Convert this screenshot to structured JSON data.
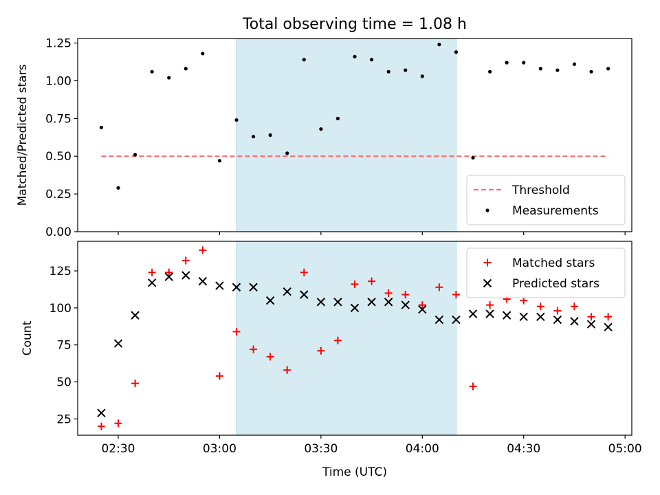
{
  "figure": {
    "title": "Total observing time = 1.08 h",
    "xlabel": "Time (UTC)"
  },
  "colors": {
    "highlight": "#add8e6",
    "threshold": "#ff6666",
    "measurements": "#000000",
    "matched": "#ff0000",
    "predicted": "#000000"
  },
  "chart_data": [
    {
      "type": "scatter",
      "ylabel": "Matched/Predicted stars",
      "xlim": [
        "02:18",
        "05:02"
      ],
      "ylim": [
        0,
        1.28
      ],
      "x_ticks": [
        "02:30",
        "03:00",
        "03:30",
        "04:00",
        "04:30",
        "05:00"
      ],
      "y_ticks": [
        "0.00",
        "0.25",
        "0.50",
        "0.75",
        "1.00",
        "1.25"
      ],
      "shaded_span": [
        "03:05",
        "04:10"
      ],
      "legend_position": "lower-right",
      "threshold": {
        "name": "Threshold",
        "value": 0.5,
        "x_range": [
          "02:25",
          "04:55"
        ]
      },
      "series": [
        {
          "name": "Measurements",
          "x": [
            "02:25",
            "02:30",
            "02:35",
            "02:40",
            "02:45",
            "02:50",
            "02:55",
            "03:00",
            "03:05",
            "03:10",
            "03:15",
            "03:20",
            "03:25",
            "03:30",
            "03:35",
            "03:40",
            "03:45",
            "03:50",
            "03:55",
            "04:00",
            "04:05",
            "04:10",
            "04:15",
            "04:20",
            "04:25",
            "04:30",
            "04:35",
            "04:40",
            "04:45",
            "04:50",
            "04:55"
          ],
          "values": [
            0.69,
            0.29,
            0.51,
            1.06,
            1.02,
            1.08,
            1.18,
            0.47,
            0.74,
            0.63,
            0.64,
            0.52,
            1.14,
            0.68,
            0.75,
            1.16,
            1.14,
            1.06,
            1.07,
            1.03,
            1.24,
            1.19,
            0.49,
            1.06,
            1.12,
            1.12,
            1.08,
            1.07,
            1.11,
            1.06,
            1.08
          ]
        }
      ]
    },
    {
      "type": "scatter",
      "ylabel": "Count",
      "xlim": [
        "02:18",
        "05:02"
      ],
      "ylim": [
        14,
        145
      ],
      "x_ticks": [
        "02:30",
        "03:00",
        "03:30",
        "04:00",
        "04:30",
        "05:00"
      ],
      "y_ticks": [
        "25",
        "50",
        "75",
        "100",
        "125"
      ],
      "shaded_span": [
        "03:05",
        "04:10"
      ],
      "legend_position": "upper-right",
      "series": [
        {
          "name": "Matched stars",
          "marker": "plus",
          "x": [
            "02:25",
            "02:30",
            "02:35",
            "02:40",
            "02:45",
            "02:50",
            "02:55",
            "03:00",
            "03:05",
            "03:10",
            "03:15",
            "03:20",
            "03:25",
            "03:30",
            "03:35",
            "03:40",
            "03:45",
            "03:50",
            "03:55",
            "04:00",
            "04:05",
            "04:10",
            "04:15",
            "04:20",
            "04:25",
            "04:30",
            "04:35",
            "04:40",
            "04:45",
            "04:50",
            "04:55"
          ],
          "values": [
            20,
            22,
            49,
            124,
            124,
            132,
            139,
            54,
            84,
            72,
            67,
            58,
            124,
            71,
            78,
            116,
            118,
            110,
            109,
            102,
            114,
            109,
            47,
            102,
            106,
            105,
            101,
            98,
            101,
            94,
            94
          ]
        },
        {
          "name": "Predicted stars",
          "marker": "x",
          "x": [
            "02:25",
            "02:30",
            "02:35",
            "02:40",
            "02:45",
            "02:50",
            "02:55",
            "03:00",
            "03:05",
            "03:10",
            "03:15",
            "03:20",
            "03:25",
            "03:30",
            "03:35",
            "03:40",
            "03:45",
            "03:50",
            "03:55",
            "04:00",
            "04:05",
            "04:10",
            "04:15",
            "04:20",
            "04:25",
            "04:30",
            "04:35",
            "04:40",
            "04:45",
            "04:50",
            "04:55"
          ],
          "values": [
            29,
            76,
            95,
            117,
            121,
            122,
            118,
            115,
            114,
            114,
            105,
            111,
            109,
            104,
            104,
            100,
            104,
            104,
            102,
            99,
            92,
            92,
            96,
            96,
            95,
            94,
            94,
            92,
            91,
            89,
            87
          ]
        }
      ]
    }
  ]
}
